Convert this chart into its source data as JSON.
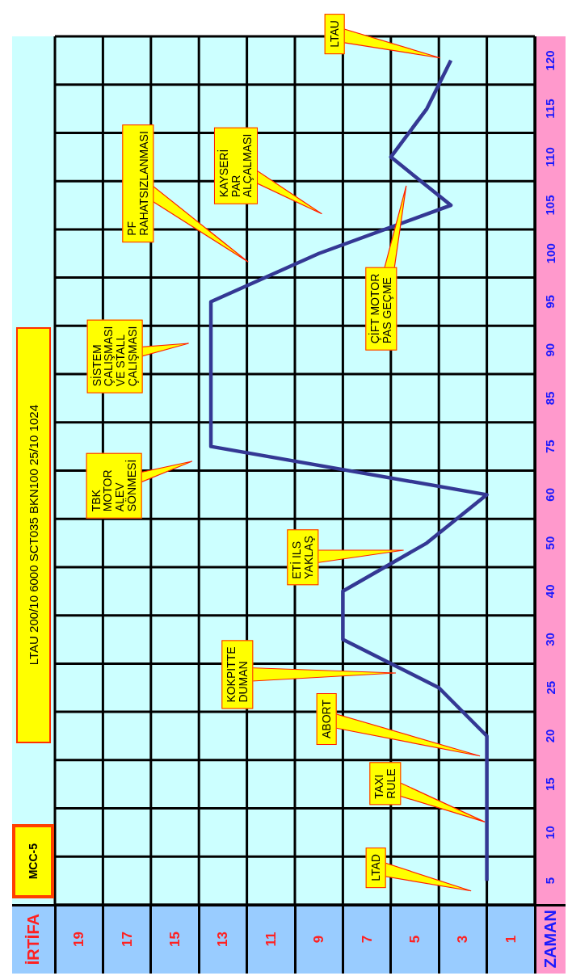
{
  "chart_data": {
    "type": "line",
    "orientation": "horizontal",
    "title": "LTAU 200/10 6000 SCT035 BKN100 25/10 1024",
    "subtitle": "MCC-5",
    "ylabel": "ZAMAN",
    "categories": [
      "120",
      "115",
      "110",
      "105",
      "100",
      "95",
      "90",
      "85",
      "75",
      "60",
      "50",
      "40",
      "30",
      "25",
      "20",
      "15",
      "10",
      "5"
    ],
    "series": [
      {
        "color": "#343894",
        "values": [
          3.5,
          4.5,
          6,
          3.5,
          9,
          13.5,
          13.5,
          13.5,
          13.5,
          2,
          4.5,
          8,
          8,
          4,
          2,
          2,
          2,
          2
        ]
      }
    ],
    "xlim": [
      20,
      0
    ],
    "xticks": [
      19,
      17,
      15,
      13,
      11,
      9,
      7,
      5,
      3,
      1
    ],
    "grid": true,
    "marker": "none",
    "line_style": "solid",
    "legend": false,
    "annotations": [
      "LTAD",
      "TAXI\nRULE",
      "ABORT",
      "KOKPITTE\nDUMAN",
      "ETİ ILS\nYAKLAŞ",
      "TBK\nMOTOR\nALEV\nSÖNMESİ",
      "SİSTEM\nÇALIŞMASI\nVE STALL\nÇALIŞMASI",
      "PF\nRAHATSIZLANMASI",
      "KAYSERİ\nPAR\nALÇALMASI",
      "ÇİFT MOTOR\nPAS GEÇME",
      "LTAU",
      "İRTİFA"
    ]
  }
}
